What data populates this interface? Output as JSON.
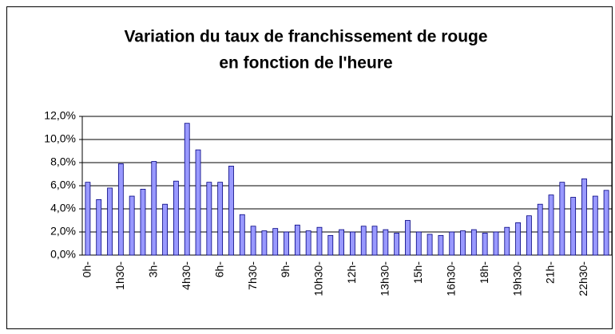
{
  "chart_data": {
    "type": "bar",
    "title": "Variation du taux de franchissement de rouge",
    "subtitle": "en fonction de l'heure",
    "categories": [
      "0h-",
      null,
      null,
      "1h30-",
      null,
      null,
      "3h-",
      null,
      null,
      "4h30-",
      null,
      null,
      "6h-",
      null,
      null,
      "7h30-",
      null,
      null,
      "9h-",
      null,
      null,
      "10h30-",
      null,
      null,
      "12h-",
      null,
      null,
      "13h30-",
      null,
      null,
      "15h-",
      null,
      null,
      "16h30-",
      null,
      null,
      "18h-",
      null,
      null,
      "19h30-",
      null,
      null,
      "21h-",
      null,
      null,
      "22h30-",
      null,
      null
    ],
    "values": [
      6.3,
      4.8,
      5.8,
      7.9,
      5.1,
      5.7,
      8.1,
      4.4,
      6.4,
      11.4,
      9.1,
      6.3,
      6.3,
      7.7,
      3.5,
      2.5,
      2.1,
      2.3,
      2.0,
      2.6,
      2.1,
      2.4,
      1.7,
      2.2,
      2.0,
      2.5,
      2.5,
      2.2,
      1.9,
      3.0,
      2.0,
      1.8,
      1.7,
      2.0,
      2.1,
      2.2,
      1.9,
      2.0,
      2.4,
      2.8,
      3.4,
      4.4,
      5.2,
      6.3,
      5.0,
      6.6,
      5.1,
      5.6
    ],
    "color": "#9999ff",
    "ylim": [
      0,
      12
    ],
    "yticks": [
      {
        "value": 0,
        "label": "0,0%"
      },
      {
        "value": 2,
        "label": "2,0%"
      },
      {
        "value": 4,
        "label": "4,0%"
      },
      {
        "value": 6,
        "label": "6,0%"
      },
      {
        "value": 8,
        "label": "8,0%"
      },
      {
        "value": 10,
        "label": "10,0%"
      },
      {
        "value": 12,
        "label": "12,0%"
      }
    ],
    "grid": true
  }
}
